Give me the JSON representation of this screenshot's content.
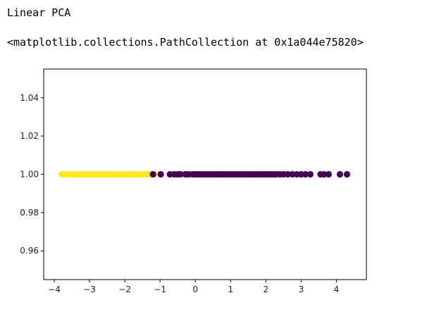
{
  "notebook": {
    "stdout": "Linear PCA",
    "repr": "<matplotlib.collections.PathCollection at 0x1a044e75820>"
  },
  "colors": {
    "class_a": "#fde725",
    "class_b": "#440154",
    "axes": "#000000"
  },
  "chart_data": {
    "type": "scatter",
    "title": "",
    "xlabel": "",
    "ylabel": "",
    "xlim": [
      -4.3,
      4.85
    ],
    "ylim": [
      0.945,
      1.055
    ],
    "xticks": [
      -4,
      -3,
      -2,
      -1,
      0,
      1,
      2,
      3,
      4
    ],
    "xtick_labels": [
      "−4",
      "−3",
      "−2",
      "−1",
      "0",
      "1",
      "2",
      "3",
      "4"
    ],
    "yticks": [
      0.96,
      0.98,
      1.0,
      1.02,
      1.04
    ],
    "ytick_labels": [
      "0.96",
      "0.98",
      "1.00",
      "1.02",
      "1.04"
    ],
    "grid": false,
    "series": [
      {
        "color": "#fde725",
        "x": [
          -3.78,
          -3.7,
          -3.62,
          -3.55,
          -3.47,
          -3.4,
          -3.32,
          -3.25,
          -3.18,
          -3.1,
          -3.03,
          -2.96,
          -2.88,
          -2.81,
          -2.73,
          -2.66,
          -2.58,
          -2.51,
          -2.44,
          -2.36,
          -2.29,
          -2.21,
          -2.14,
          -2.06,
          -1.99,
          -1.91,
          -1.84,
          -1.76,
          -1.69,
          -1.61,
          -1.54,
          -1.46,
          -1.39,
          -1.31,
          -1.24,
          -1.16,
          -0.32,
          -0.12,
          0.02
        ],
        "y": [
          1.0,
          1.0,
          1.0,
          1.0,
          1.0,
          1.0,
          1.0,
          1.0,
          1.0,
          1.0,
          1.0,
          1.0,
          1.0,
          1.0,
          1.0,
          1.0,
          1.0,
          1.0,
          1.0,
          1.0,
          1.0,
          1.0,
          1.0,
          1.0,
          1.0,
          1.0,
          1.0,
          1.0,
          1.0,
          1.0,
          1.0,
          1.0,
          1.0,
          1.0,
          1.0,
          1.0,
          1.0,
          1.0,
          1.0
        ]
      },
      {
        "color": "#440154",
        "x": [
          -1.2,
          -0.98,
          -0.72,
          -0.6,
          -0.5,
          -0.42,
          -0.28,
          -0.2,
          -0.08,
          0.0,
          0.06,
          0.14,
          0.22,
          0.3,
          0.38,
          0.46,
          0.54,
          0.62,
          0.7,
          0.78,
          0.86,
          0.94,
          1.02,
          1.1,
          1.18,
          1.26,
          1.34,
          1.42,
          1.5,
          1.58,
          1.66,
          1.74,
          1.82,
          1.9,
          1.98,
          2.06,
          2.14,
          2.22,
          2.3,
          2.4,
          2.5,
          2.62,
          2.75,
          2.88,
          3.0,
          3.12,
          3.26,
          3.55,
          3.65,
          3.78,
          4.1,
          4.3
        ],
        "y": [
          1.0,
          1.0,
          1.0,
          1.0,
          1.0,
          1.0,
          1.0,
          1.0,
          1.0,
          1.0,
          1.0,
          1.0,
          1.0,
          1.0,
          1.0,
          1.0,
          1.0,
          1.0,
          1.0,
          1.0,
          1.0,
          1.0,
          1.0,
          1.0,
          1.0,
          1.0,
          1.0,
          1.0,
          1.0,
          1.0,
          1.0,
          1.0,
          1.0,
          1.0,
          1.0,
          1.0,
          1.0,
          1.0,
          1.0,
          1.0,
          1.0,
          1.0,
          1.0,
          1.0,
          1.0,
          1.0,
          1.0,
          1.0,
          1.0,
          1.0,
          1.0,
          1.0
        ]
      }
    ]
  }
}
